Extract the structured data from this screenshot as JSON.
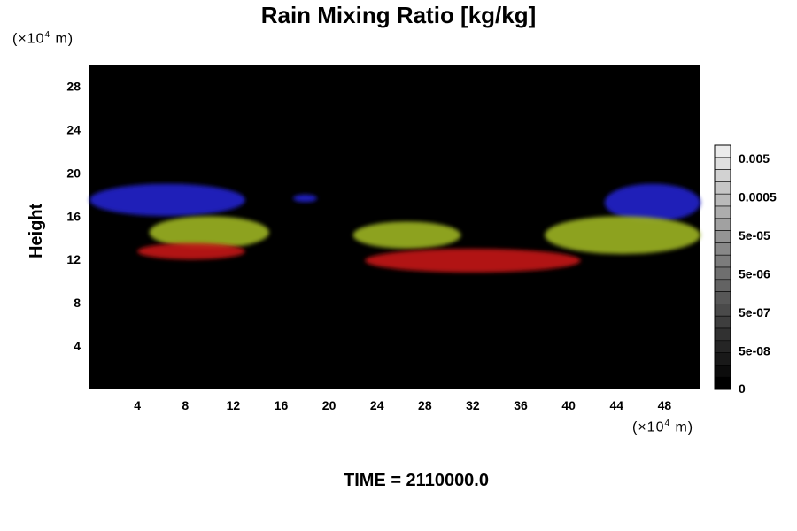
{
  "chart_data": {
    "type": "heatmap",
    "title": "Rain Mixing Ratio [kg/kg]",
    "ylabel": "Height",
    "y_unit_prefix": "(×10",
    "y_unit_exp": "4",
    "y_unit_suffix": " m)",
    "x_unit_prefix": "(×10",
    "x_unit_exp": "4",
    "x_unit_suffix": " m)",
    "xlim": [
      0,
      51
    ],
    "ylim": [
      0,
      30
    ],
    "x_ticks": [
      4,
      8,
      12,
      16,
      20,
      24,
      28,
      32,
      36,
      40,
      44,
      48
    ],
    "y_ticks": [
      4,
      8,
      12,
      16,
      20,
      24,
      28
    ],
    "colorbar": {
      "labels": [
        "0.005",
        "0.0005",
        "5e-05",
        "5e-06",
        "5e-07",
        "5e-08",
        "0"
      ],
      "levels": 20
    },
    "regions": [
      {
        "band": "blue",
        "color": "#2020c8",
        "x": [
          0,
          13
        ],
        "y": [
          16,
          19
        ]
      },
      {
        "band": "blue",
        "color": "#2020c8",
        "x": [
          43,
          51
        ],
        "y": [
          15.5,
          19
        ]
      },
      {
        "band": "blue",
        "color": "#2020c8",
        "x": [
          17,
          19
        ],
        "y": [
          17.3,
          18
        ]
      },
      {
        "band": "yellow-green",
        "color": "#9ab020",
        "x": [
          5,
          15
        ],
        "y": [
          13,
          16
        ]
      },
      {
        "band": "yellow-green",
        "color": "#9ab020",
        "x": [
          22,
          31
        ],
        "y": [
          13,
          15.5
        ]
      },
      {
        "band": "yellow-green",
        "color": "#9ab020",
        "x": [
          38,
          51
        ],
        "y": [
          12.5,
          16
        ]
      },
      {
        "band": "red",
        "color": "#c01818",
        "x": [
          23,
          41
        ],
        "y": [
          10.8,
          13
        ]
      },
      {
        "band": "red",
        "color": "#c01818",
        "x": [
          4,
          13
        ],
        "y": [
          12,
          13.5
        ]
      }
    ]
  },
  "footer": {
    "time": "TIME = 2110000.0"
  },
  "colors": {
    "plot_background": "#000000",
    "blue": "#2020c8",
    "green": "#9ab020",
    "red": "#c01818"
  }
}
